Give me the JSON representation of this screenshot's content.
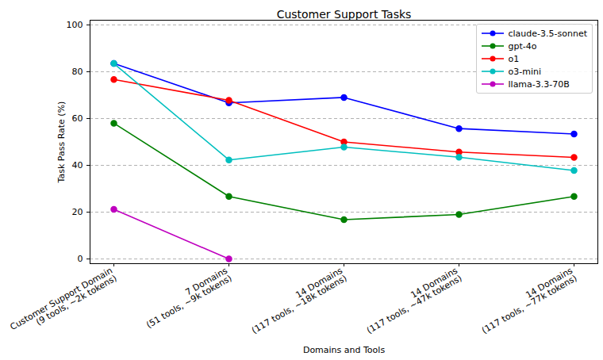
{
  "chart_data": {
    "type": "line",
    "title": "Customer Support Tasks",
    "x_label": "Domains and Tools",
    "y_label": "Task Pass Rate (%)",
    "categories": [
      "Customer Support Domain\n(9 tools, ~2k tokens)",
      "7 Domains\n(51 tools, ~9k tokens)",
      "14 Domains\n(117 tools, ~18k tokens)",
      "14 Domains\n(117 tools, ~47k tokens)",
      "14 Domains\n(117 tools, ~77k tokens)"
    ],
    "series": [
      {
        "name": "claude-3.5-sonnet",
        "color": "#0000ff",
        "values": [
          83.5,
          66.7,
          69.0,
          55.7,
          53.4
        ]
      },
      {
        "name": "gpt-4o",
        "color": "#008000",
        "values": [
          58.0,
          26.7,
          16.8,
          19.0,
          26.7
        ]
      },
      {
        "name": "o1",
        "color": "#ff0000",
        "values": [
          76.7,
          67.8,
          50.0,
          45.7,
          43.4
        ]
      },
      {
        "name": "o3-mini",
        "color": "#00bfbf",
        "values": [
          83.5,
          42.3,
          47.8,
          43.5,
          37.8
        ]
      },
      {
        "name": "llama-3.3-70B",
        "color": "#bf00bf",
        "values": [
          21.2,
          0,
          null,
          null,
          null
        ]
      }
    ],
    "ylim": [
      -2,
      102
    ],
    "yticks": [
      0,
      20,
      40,
      60,
      80,
      100
    ],
    "grid": "y",
    "legend": "upper right",
    "marker": "circle",
    "line_style": "solid"
  }
}
